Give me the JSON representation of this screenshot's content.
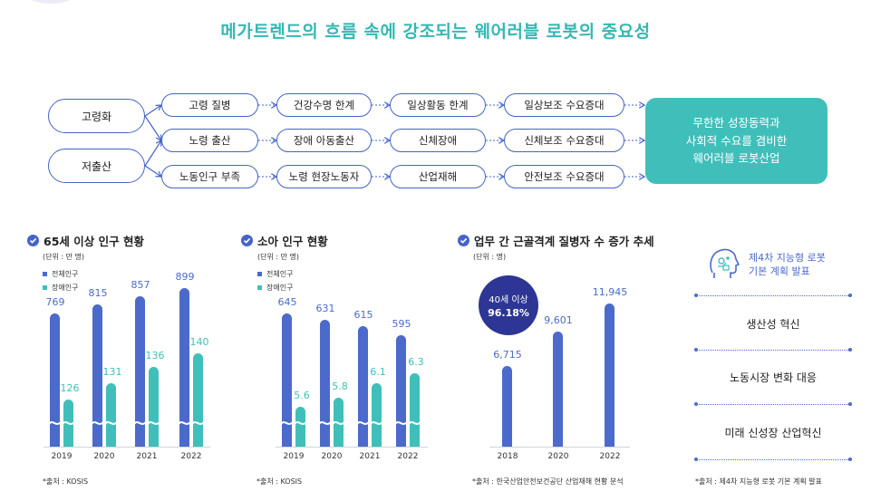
{
  "title": "메가트렌드의 흐름 속에 강조되는 웨어러블 로봇의 중요성",
  "diagram": {
    "sources": [
      "고령화",
      "저출산"
    ],
    "rows": [
      [
        "고령 질병",
        "건강수명 한계",
        "일상활동 한계",
        "일상보조 수요증대"
      ],
      [
        "노령 출산",
        "장애 아동출산",
        "신체장애",
        "신체보조 수요증대"
      ],
      [
        "노동인구 부족",
        "노령 현장노동자",
        "산업재해",
        "안전보조 수요증대"
      ]
    ],
    "result": [
      "무한한 성장동력과",
      "사회적 수요를 겸비한",
      "웨어러블 로봇산업"
    ]
  },
  "chart_data": [
    {
      "type": "bar",
      "title": "65세 이상 인구 현황",
      "unit": "(단위 : 만 명)",
      "categories": [
        "2019",
        "2020",
        "2021",
        "2022"
      ],
      "series": [
        {
          "name": "전체인구",
          "values": [
            769,
            815,
            857,
            899
          ],
          "color": "#4c6acb"
        },
        {
          "name": "장애인구",
          "values": [
            126,
            131,
            136,
            140
          ],
          "color": "#40bfba"
        }
      ],
      "axis_break": true,
      "source": "*출처 : KOSIS"
    },
    {
      "type": "bar",
      "title": "소아 인구 현황",
      "unit": "(단위 : 만 명)",
      "categories": [
        "2019",
        "2020",
        "2021",
        "2022"
      ],
      "series": [
        {
          "name": "전체인구",
          "values": [
            645,
            631,
            615,
            595
          ],
          "color": "#4c6acb"
        },
        {
          "name": "장애인구",
          "values": [
            5.6,
            5.8,
            6.1,
            6.3
          ],
          "color": "#40bfba"
        }
      ],
      "axis_break": true,
      "source": "*출처 : KOSIS"
    },
    {
      "type": "bar",
      "title": "업무 간 근골격계 질병자 수 증가 추세",
      "unit": "(단위 : 명)",
      "categories": [
        "2018",
        "2020",
        "2022"
      ],
      "series": [
        {
          "name": "질병자 수",
          "values": [
            6715,
            9601,
            11945
          ],
          "color": "#4c6acb"
        }
      ],
      "value_labels": [
        "6,715",
        "9,601",
        "11,945"
      ],
      "badge": {
        "line1": "40세 이상",
        "line2": "96.18%"
      },
      "source": "*출처 : 한국산업안전보건공단 산업재해 현황 분석"
    }
  ],
  "plan": {
    "title_line1": "제4차 지능형 로봇",
    "title_line2": "기본 계획 발표",
    "items": [
      "생산성 혁신",
      "노동시장 변화 대응",
      "미래 신성장 산업혁신"
    ],
    "source": "*출처 : 제4차 지능형 로봇 기본 계획 발표"
  },
  "colors": {
    "blue": "#4c6acb",
    "teal": "#40bfba",
    "navy": "#2d3694",
    "title": "#34b8b3"
  }
}
